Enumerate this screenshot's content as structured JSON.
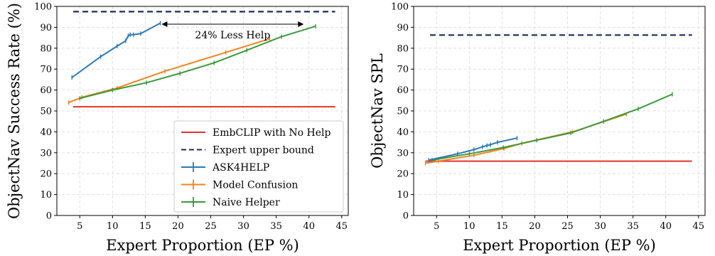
{
  "chart_data": [
    {
      "type": "line",
      "title": "",
      "xlabel": "Expert Proportion (EP %)",
      "ylabel": "ObjectNav Success Rate (%)",
      "xlim": [
        1.5,
        46
      ],
      "ylim": [
        0,
        100
      ],
      "xticks": [
        "5",
        "10",
        "15",
        "20",
        "25",
        "30",
        "35",
        "40",
        "45"
      ],
      "yticks": [
        "0",
        "10",
        "20",
        "30",
        "40",
        "50",
        "60",
        "70",
        "80",
        "90",
        "100"
      ],
      "grid": true,
      "legend_placement": "lower-right",
      "series": [
        {
          "name": "EmbCLIP with No Help",
          "color": "#e8312b",
          "style": "solid",
          "x": [
            4.0,
            44.0
          ],
          "y": [
            52.0,
            52.0
          ]
        },
        {
          "name": "Expert upper bound",
          "color": "#1b2a5c",
          "style": "dashed",
          "x": [
            4.0,
            44.0
          ],
          "y": [
            97.5,
            97.5
          ]
        },
        {
          "name": "ASK4HELP",
          "color": "#2a7ab8",
          "style": "solid",
          "x": [
            3.8,
            8.2,
            10.7,
            12.0,
            12.4,
            12.7,
            13.2,
            14.3,
            17.3
          ],
          "y": [
            66.0,
            76.0,
            81.0,
            83.5,
            86.0,
            86.5,
            86.5,
            87.0,
            92.0
          ]
        },
        {
          "name": "Model Confusion",
          "color": "#f5821f",
          "style": "solid",
          "x": [
            3.3,
            5.3,
            10.7,
            18.0,
            27.3,
            34.0
          ],
          "y": [
            54.0,
            56.5,
            61.0,
            69.0,
            78.0,
            84.5
          ]
        },
        {
          "name": "Naive Helper",
          "color": "#3a9a3a",
          "style": "solid",
          "x": [
            5.0,
            10.0,
            15.2,
            20.3,
            25.5,
            30.5,
            35.8,
            41.0
          ],
          "y": [
            56.0,
            60.0,
            63.5,
            68.0,
            73.0,
            79.0,
            85.5,
            90.5
          ]
        }
      ],
      "annotations": [
        {
          "text": "24% Less Help",
          "x_from": 17.5,
          "x_to": 39.2,
          "y": 91.5
        }
      ]
    },
    {
      "type": "line",
      "title": "",
      "xlabel": "Expert Proportion (EP %)",
      "ylabel": "ObjectNav SPL",
      "xlim": [
        1.5,
        46
      ],
      "ylim": [
        0,
        100
      ],
      "xticks": [
        "5",
        "10",
        "15",
        "20",
        "25",
        "30",
        "35",
        "40",
        "45"
      ],
      "yticks": [
        "0",
        "10",
        "20",
        "30",
        "40",
        "50",
        "60",
        "70",
        "80",
        "90",
        "100"
      ],
      "grid": true,
      "series": [
        {
          "name": "EmbCLIP with No Help",
          "color": "#e8312b",
          "style": "solid",
          "x": [
            3.3,
            44.0
          ],
          "y": [
            26.0,
            26.0
          ]
        },
        {
          "name": "Expert upper bound",
          "color": "#1b2a5c",
          "style": "dashed",
          "x": [
            4.0,
            44.0
          ],
          "y": [
            86.3,
            86.3
          ]
        },
        {
          "name": "ASK4HELP",
          "color": "#2a7ab8",
          "style": "solid",
          "x": [
            3.8,
            8.2,
            10.7,
            12.0,
            12.7,
            13.2,
            14.3,
            17.3
          ],
          "y": [
            26.5,
            29.5,
            31.5,
            32.8,
            33.5,
            33.8,
            35.0,
            37.0
          ]
        },
        {
          "name": "Model Confusion",
          "color": "#f5821f",
          "style": "solid",
          "x": [
            3.3,
            5.3,
            10.7,
            15.3,
            18.0,
            25.8,
            34.0
          ],
          "y": [
            25.0,
            26.0,
            28.8,
            32.0,
            34.5,
            40.0,
            48.5
          ]
        },
        {
          "name": "Naive Helper",
          "color": "#3a9a3a",
          "style": "solid",
          "x": [
            4.3,
            10.0,
            15.2,
            20.3,
            25.5,
            30.5,
            35.8,
            41.0
          ],
          "y": [
            26.5,
            29.5,
            32.5,
            36.0,
            39.5,
            45.0,
            51.0,
            58.0
          ]
        }
      ]
    }
  ]
}
